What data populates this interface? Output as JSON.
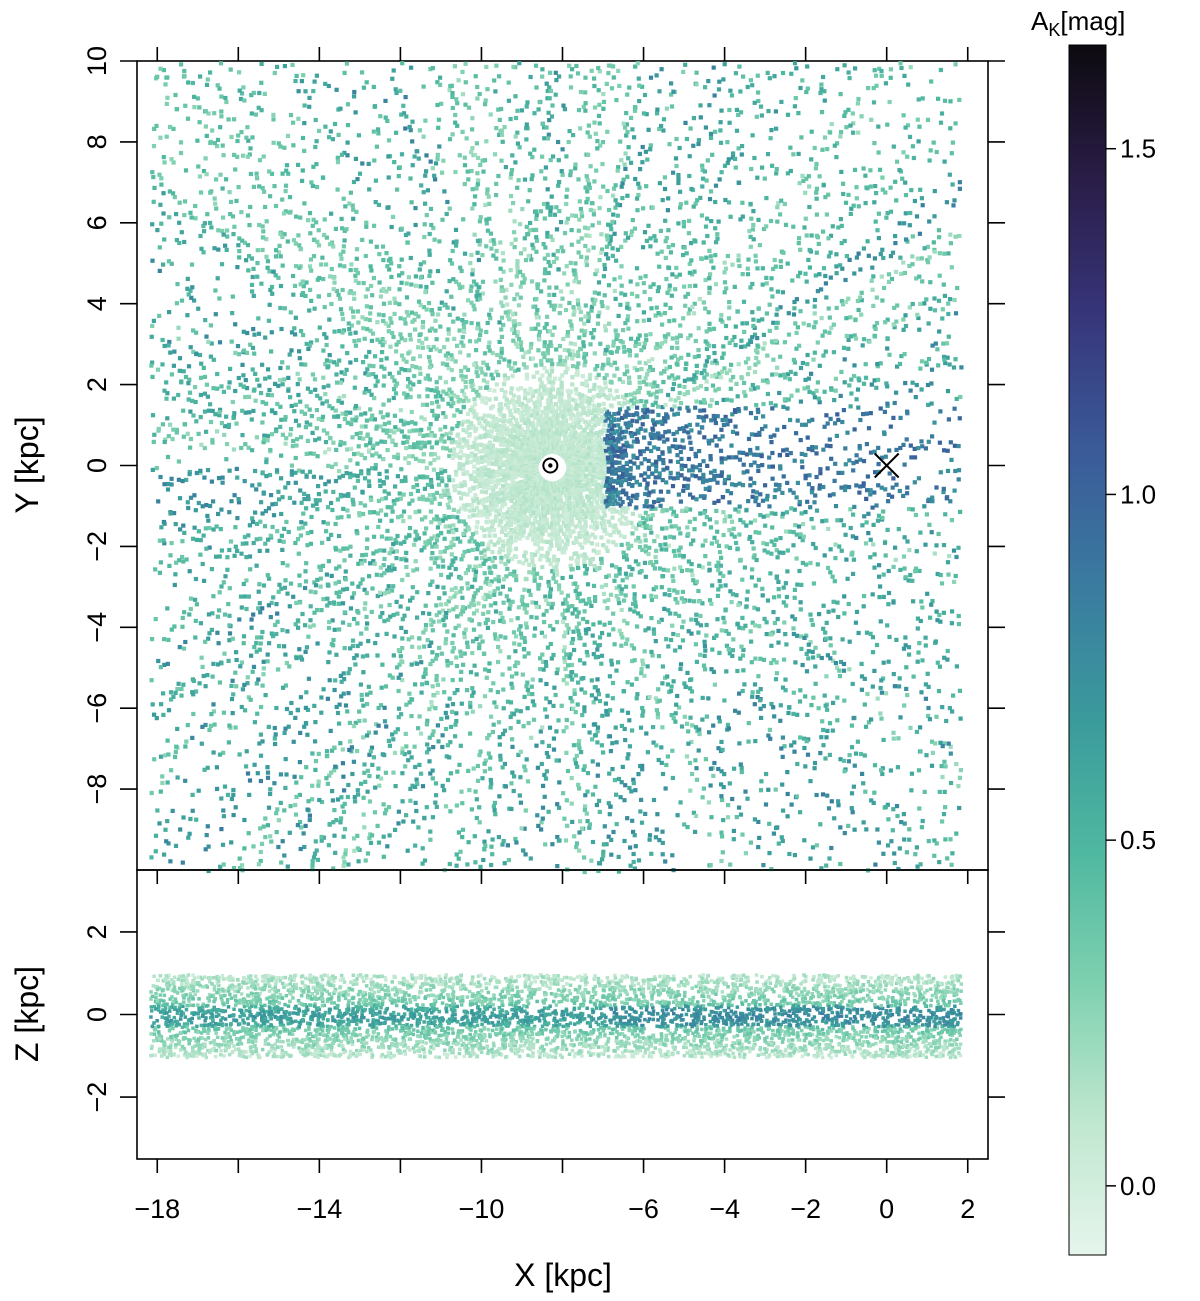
{
  "chart_data": [
    {
      "type": "heatmap",
      "panel": "top",
      "xlabel": "",
      "ylabel": "Y [kpc]",
      "xlim": [
        -18.5,
        2.5
      ],
      "ylim": [
        -10,
        10
      ],
      "yticks": [
        -8,
        -6,
        -4,
        -2,
        0,
        2,
        4,
        6,
        8,
        10
      ],
      "yticklabels": [
        "−8",
        "−6",
        "−4",
        "−2",
        "0",
        "2",
        "4",
        "6",
        "8",
        "10"
      ],
      "xticks": [
        -18,
        -16,
        -14,
        -12,
        -10,
        -8,
        -6,
        -4,
        -2,
        0,
        2
      ],
      "markers": [
        {
          "symbol": "sun",
          "x": -8.3,
          "y": 0
        },
        {
          "symbol": "cross",
          "x": 0,
          "y": 0
        }
      ],
      "description_values": {
        "data_extent_x": [
          -18.2,
          1.8
        ],
        "observer_x": -8.3,
        "observer_y": 0,
        "high_extinction_region": {
          "x": [
            -7,
            1.8
          ],
          "y": [
            -1,
            1.5
          ],
          "value": 1.0
        }
      }
    },
    {
      "type": "heatmap",
      "panel": "bottom",
      "xlabel": "X [kpc]",
      "ylabel": "Z [kpc]",
      "xlim": [
        -18.5,
        2.5
      ],
      "ylim": [
        -3.5,
        3.5
      ],
      "xticks": [
        -18,
        -16,
        -14,
        -12,
        -10,
        -8,
        -6,
        -4,
        -2,
        0,
        2
      ],
      "xticklabels": [
        "−18",
        "",
        "−14",
        "",
        "−10",
        "",
        "−6",
        "−4",
        "−2",
        "0",
        "2"
      ],
      "yticks": [
        -2,
        0,
        2
      ],
      "yticklabels": [
        "−2",
        "0",
        "2"
      ],
      "description_values": {
        "data_extent_z": [
          -1,
          1
        ],
        "data_extent_x": [
          -18.2,
          1.8
        ]
      }
    }
  ],
  "colorbar": {
    "title_main": "A",
    "title_sub": "K",
    "title_rest": "[mag]",
    "range": [
      -0.1,
      1.65
    ],
    "ticks": [
      0.0,
      0.5,
      1.0,
      1.5
    ],
    "ticklabels": [
      "0.0",
      "0.5",
      "1.0",
      "1.5"
    ],
    "colors": [
      "#e6f5ec",
      "#bfe7cf",
      "#7fd1b0",
      "#4fb8a0",
      "#3a9a9c",
      "#3a7aa0",
      "#3a5a98",
      "#37357a",
      "#2a1d48",
      "#0d0a10"
    ]
  }
}
